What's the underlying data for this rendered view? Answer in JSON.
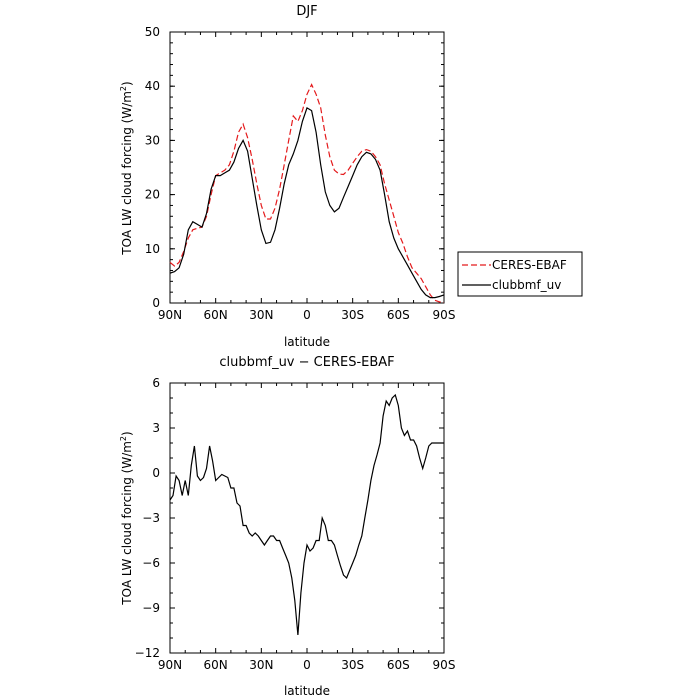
{
  "chart_data": [
    {
      "type": "line",
      "title": "DJF",
      "xlabel": "latitude",
      "ylabel": "TOA LW cloud forcing (W/m²)",
      "ylabel_main": "TOA LW cloud forcing (W/m",
      "ylabel_sup": "2",
      "ylabel_end": ")",
      "xlim": [
        90,
        -90
      ],
      "ylim": [
        0,
        50
      ],
      "xticks": [
        90,
        60,
        30,
        0,
        -30,
        -60,
        -90
      ],
      "xtick_labels": [
        "90N",
        "60N",
        "30N",
        "0",
        "30S",
        "60S",
        "90S"
      ],
      "yticks": [
        0,
        10,
        20,
        30,
        40,
        50
      ],
      "ytick_labels": [
        "0",
        "10",
        "20",
        "30",
        "40",
        "50"
      ],
      "legend_position": "right",
      "series": [
        {
          "name": "CERES-EBAF",
          "color": "#e41a1c",
          "dash": "dashed",
          "x": [
            90,
            87,
            84,
            81,
            78,
            75,
            72,
            69,
            66,
            63,
            60,
            57,
            54,
            51,
            48,
            45,
            42,
            39,
            36,
            33,
            30,
            27,
            24,
            21,
            18,
            15,
            12,
            9,
            6,
            3,
            0,
            -3,
            -6,
            -9,
            -12,
            -15,
            -18,
            -21,
            -24,
            -27,
            -30,
            -33,
            -36,
            -39,
            -42,
            -45,
            -48,
            -51,
            -54,
            -57,
            -60,
            -63,
            -66,
            -69,
            -72,
            -75,
            -78,
            -81,
            -84,
            -87,
            -90
          ],
          "y": [
            7.5,
            6.8,
            7.5,
            9.5,
            12.0,
            13.5,
            13.8,
            14.0,
            16.0,
            20.0,
            23.5,
            24.0,
            24.5,
            25.5,
            28.0,
            31.5,
            33.0,
            30.5,
            26.5,
            22.0,
            18.0,
            15.5,
            15.5,
            17.5,
            21.0,
            25.5,
            30.0,
            34.5,
            33.5,
            35.5,
            38.5,
            40.3,
            38.5,
            36.0,
            31.0,
            27.0,
            24.5,
            23.8,
            23.7,
            24.5,
            25.8,
            27.0,
            28.0,
            28.3,
            28.0,
            27.0,
            25.5,
            22.0,
            19.0,
            16.0,
            13.0,
            11.0,
            8.5,
            6.5,
            5.5,
            4.5,
            3.0,
            1.5,
            0.5,
            0.2,
            0.1
          ]
        },
        {
          "name": "clubbmf_uv",
          "color": "#000000",
          "dash": "solid",
          "x": [
            90,
            87,
            84,
            81,
            78,
            75,
            72,
            69,
            66,
            63,
            60,
            57,
            54,
            51,
            48,
            45,
            42,
            39,
            36,
            33,
            30,
            27,
            24,
            21,
            18,
            15,
            12,
            9,
            6,
            3,
            0,
            -3,
            -6,
            -9,
            -12,
            -15,
            -18,
            -21,
            -24,
            -27,
            -30,
            -33,
            -36,
            -39,
            -42,
            -45,
            -48,
            -51,
            -54,
            -57,
            -60,
            -63,
            -66,
            -69,
            -72,
            -75,
            -78,
            -81,
            -84,
            -87,
            -90
          ],
          "y": [
            5.5,
            5.8,
            6.5,
            9.0,
            13.5,
            15.0,
            14.5,
            14.0,
            16.5,
            21.0,
            23.5,
            23.5,
            24.0,
            24.5,
            26.0,
            28.5,
            30.0,
            28.0,
            23.0,
            18.0,
            13.5,
            11.0,
            11.2,
            13.5,
            17.5,
            22.0,
            25.5,
            27.5,
            30.0,
            33.5,
            36.0,
            35.5,
            31.5,
            25.5,
            20.5,
            18.0,
            16.8,
            17.5,
            19.5,
            21.5,
            23.5,
            25.5,
            27.0,
            27.8,
            27.5,
            26.5,
            24.5,
            20.0,
            15.0,
            12.0,
            10.0,
            8.5,
            7.0,
            5.5,
            4.0,
            2.5,
            1.5,
            1.0,
            1.0,
            1.2,
            1.5
          ]
        }
      ]
    },
    {
      "type": "line",
      "title": "clubbmf_uv − CERES-EBAF",
      "xlabel": "latitude",
      "ylabel": "TOA LW cloud forcing (W/m²)",
      "ylabel_main": "TOA LW cloud forcing (W/m",
      "ylabel_sup": "2",
      "ylabel_end": ")",
      "xlim": [
        90,
        -90
      ],
      "ylim": [
        -12,
        6
      ],
      "xticks": [
        90,
        60,
        30,
        0,
        -30,
        -60,
        -90
      ],
      "xtick_labels": [
        "90N",
        "60N",
        "30N",
        "0",
        "30S",
        "60S",
        "90S"
      ],
      "yticks": [
        -12,
        -9,
        -6,
        -3,
        0,
        3,
        6
      ],
      "ytick_labels": [
        "−12",
        "−9",
        "−6",
        "−3",
        "0",
        "3",
        "6"
      ],
      "series": [
        {
          "color": "#000000",
          "dash": "solid",
          "x": [
            90,
            88,
            86,
            84,
            82,
            80,
            78,
            76,
            74,
            72,
            70,
            68,
            66,
            64,
            62,
            60,
            58,
            56,
            54,
            52,
            50,
            48,
            46,
            44,
            42,
            40,
            38,
            36,
            34,
            32,
            30,
            28,
            26,
            24,
            22,
            20,
            18,
            16,
            14,
            12,
            10,
            8,
            6,
            4,
            2,
            0,
            -2,
            -4,
            -6,
            -8,
            -10,
            -12,
            -14,
            -16,
            -18,
            -20,
            -22,
            -24,
            -26,
            -28,
            -30,
            -32,
            -34,
            -36,
            -38,
            -40,
            -42,
            -44,
            -46,
            -48,
            -50,
            -52,
            -54,
            -56,
            -58,
            -60,
            -62,
            -64,
            -66,
            -68,
            -70,
            -72,
            -74,
            -76,
            -78,
            -80,
            -82,
            -84,
            -86,
            -88,
            -90
          ],
          "y": [
            -1.8,
            -1.5,
            -0.2,
            -0.5,
            -1.5,
            -0.5,
            -1.5,
            0.5,
            1.8,
            -0.2,
            -0.5,
            -0.3,
            0.3,
            1.8,
            0.8,
            -0.5,
            -0.3,
            -0.1,
            -0.2,
            -0.3,
            -1.0,
            -1.0,
            -2.0,
            -2.2,
            -3.5,
            -3.5,
            -4.0,
            -4.2,
            -4.0,
            -4.2,
            -4.5,
            -4.8,
            -4.5,
            -4.2,
            -4.2,
            -4.5,
            -4.5,
            -5.0,
            -5.5,
            -6.0,
            -7.0,
            -8.5,
            -10.8,
            -8.0,
            -6.0,
            -4.8,
            -5.2,
            -5.0,
            -4.5,
            -4.5,
            -3.0,
            -3.5,
            -4.5,
            -4.5,
            -4.8,
            -5.5,
            -6.2,
            -6.8,
            -7.0,
            -6.5,
            -6.0,
            -5.5,
            -4.8,
            -4.2,
            -3.0,
            -1.8,
            -0.5,
            0.5,
            1.2,
            2.0,
            3.8,
            4.8,
            4.5,
            5.0,
            5.2,
            4.5,
            3.0,
            2.5,
            2.8,
            2.2,
            2.2,
            1.8,
            1.0,
            0.3,
            1.0,
            1.8,
            2.0,
            2.0,
            2.0,
            2.0,
            2.0
          ]
        }
      ]
    }
  ]
}
